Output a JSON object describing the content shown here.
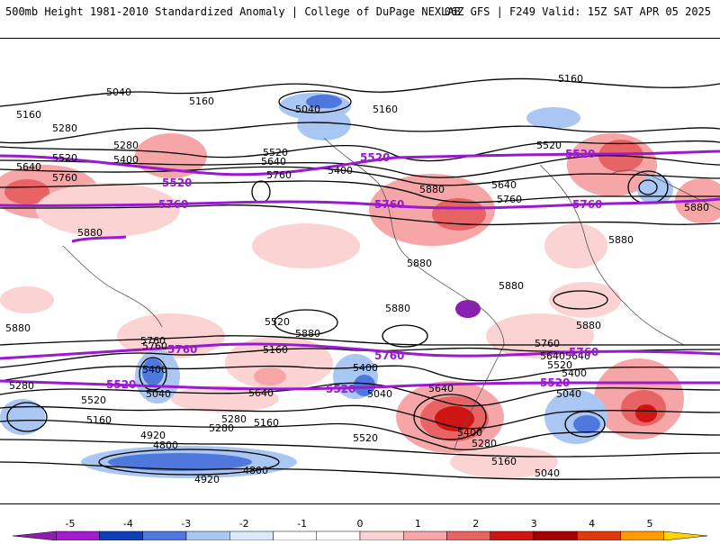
{
  "header": {
    "title_left": "500mb Height 1981-2010 Standardized Anomaly | College of DuPage NEXLAB",
    "title_right": "06Z GFS | F249 Valid: 15Z SAT APR 05 2025"
  },
  "contour_labels": {
    "black": [
      "5040",
      "5160",
      "5160",
      "5040",
      "5160",
      "5160",
      "5280",
      "5520",
      "5640",
      "5760",
      "5880",
      "5280",
      "5400",
      "5520",
      "5640",
      "5760",
      "5880",
      "5400",
      "5520",
      "5640",
      "5760",
      "5880",
      "5880",
      "5880",
      "5880",
      "5880",
      "5880",
      "5880",
      "5760",
      "5640",
      "5520",
      "5400",
      "5280",
      "5160",
      "5040",
      "5400",
      "5520",
      "5640",
      "5040",
      "5280",
      "5160",
      "4920",
      "4800",
      "4920",
      "4800",
      "5640",
      "5400",
      "5280",
      "5160",
      "5040",
      "5520",
      "5640",
      "5760",
      "5400",
      "5040",
      "5160",
      "5520",
      "5280",
      "5760",
      "5880"
    ],
    "purple": [
      "5520",
      "5520",
      "5760",
      "5760",
      "5520",
      "5760",
      "5760",
      "5760",
      "5520",
      "5520",
      "5520",
      "5760",
      "5760",
      "5520",
      "5760"
    ]
  },
  "colorbar": {
    "ticks": [
      "-5",
      "-4",
      "-3",
      "-2",
      "-1",
      "0",
      "1",
      "2",
      "3",
      "4",
      "5"
    ],
    "colors": [
      "#8a1fb0",
      "#a21dd0",
      "#0e3fb8",
      "#4f78dd",
      "#a9c7f2",
      "#dbe9fb",
      "#ffffff",
      "#ffffff",
      "#fcd3d3",
      "#f6a6a6",
      "#e86464",
      "#cf1414",
      "#a40000",
      "#e0380f",
      "#ff9a00",
      "#ffd400"
    ]
  },
  "colors": {
    "purple_contour": "#9a1ad1",
    "pos_light": "#fcd3d3",
    "pos_mid": "#f6a6a6",
    "pos_strong": "#e86464",
    "pos_max": "#cf1414",
    "neg_light": "#a9c7f2",
    "neg_mid": "#4f78dd",
    "neg_strong": "#0e3fb8",
    "neg_max": "#8a1fb0"
  }
}
